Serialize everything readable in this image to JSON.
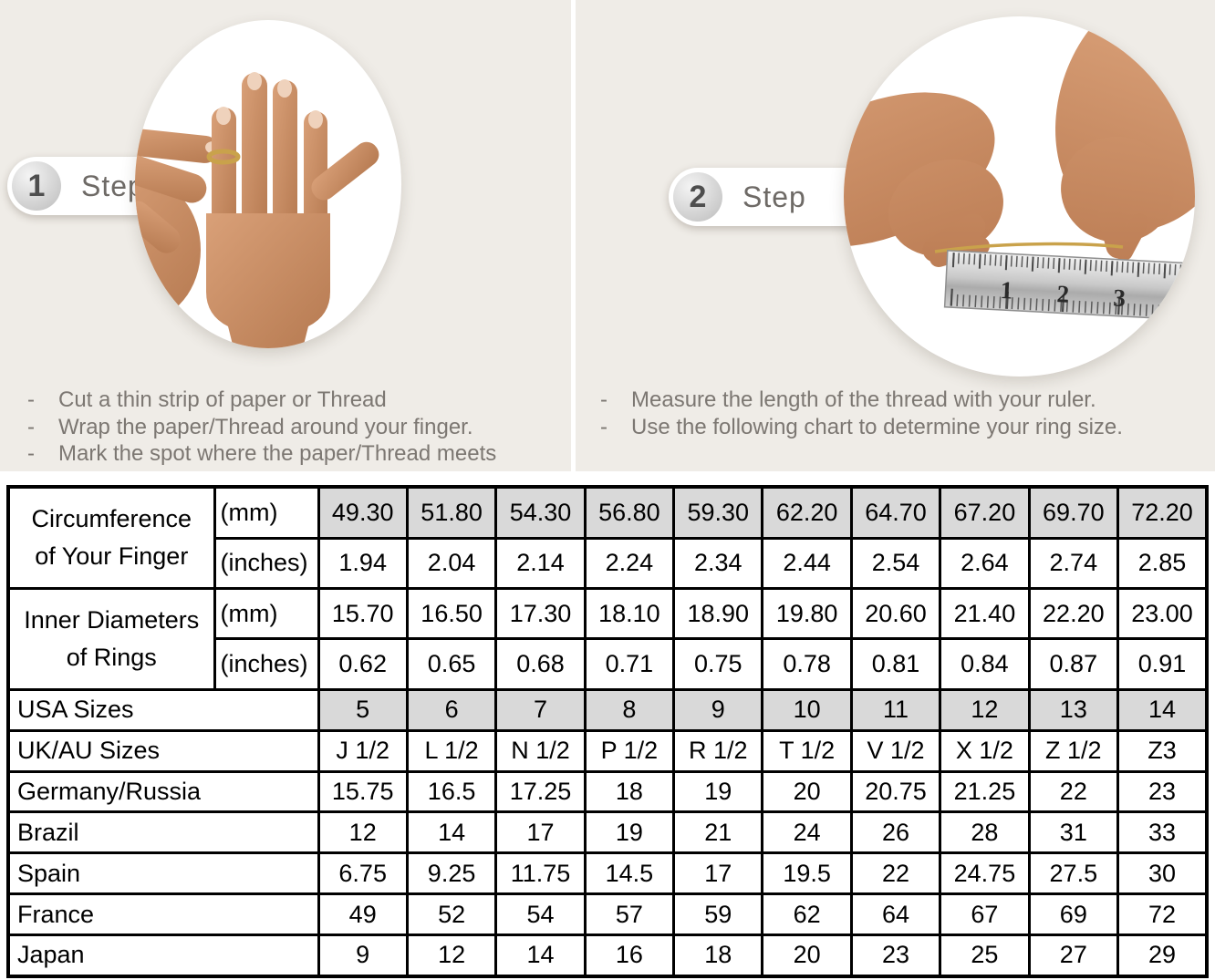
{
  "colors": {
    "panel_bg": "#EFECE7",
    "shaded_cell": "#D9D9D9",
    "table_border": "#000000",
    "thread_gold": "#C9A24B",
    "instruction_text": "#7C7772"
  },
  "step1": {
    "number": "1",
    "label": "Step",
    "bullets": [
      "Cut a thin strip of paper or Thread",
      "Wrap the paper/Thread around your finger.",
      "Mark the spot where the paper/Thread meets"
    ]
  },
  "step2": {
    "number": "2",
    "label": "Step",
    "bullets": [
      "Measure the length of the thread with your ruler.",
      "Use the following chart to determine your ring size."
    ],
    "ruler_numbers": [
      "1",
      "2",
      "3"
    ]
  },
  "table": {
    "groups": [
      {
        "label_lines": [
          "Circumference",
          "of Your Finger"
        ],
        "rows": [
          {
            "unit": "(mm)",
            "shaded": true,
            "values": [
              "49.30",
              "51.80",
              "54.30",
              "56.80",
              "59.30",
              "62.20",
              "64.70",
              "67.20",
              "69.70",
              "72.20"
            ]
          },
          {
            "unit": "(inches)",
            "shaded": false,
            "values": [
              "1.94",
              "2.04",
              "2.14",
              "2.24",
              "2.34",
              "2.44",
              "2.54",
              "2.64",
              "2.74",
              "2.85"
            ]
          }
        ]
      },
      {
        "label_lines": [
          "Inner Diameters",
          "of Rings"
        ],
        "rows": [
          {
            "unit": "(mm)",
            "shaded": false,
            "values": [
              "15.70",
              "16.50",
              "17.30",
              "18.10",
              "18.90",
              "19.80",
              "20.60",
              "21.40",
              "22.20",
              "23.00"
            ]
          },
          {
            "unit": "(inches)",
            "shaded": false,
            "values": [
              "0.62",
              "0.65",
              "0.68",
              "0.71",
              "0.75",
              "0.78",
              "0.81",
              "0.84",
              "0.87",
              "0.91"
            ]
          }
        ]
      }
    ],
    "size_rows": [
      {
        "label": "USA Sizes",
        "shaded": true,
        "values": [
          "5",
          "6",
          "7",
          "8",
          "9",
          "10",
          "11",
          "12",
          "13",
          "14"
        ]
      },
      {
        "label": "UK/AU Sizes",
        "shaded": false,
        "values": [
          "J 1/2",
          "L 1/2",
          "N 1/2",
          "P 1/2",
          "R 1/2",
          "T 1/2",
          "V 1/2",
          "X 1/2",
          "Z 1/2",
          "Z3"
        ]
      },
      {
        "label": "Germany/Russia",
        "shaded": false,
        "values": [
          "15.75",
          "16.5",
          "17.25",
          "18",
          "19",
          "20",
          "20.75",
          "21.25",
          "22",
          "23"
        ]
      },
      {
        "label": "Brazil",
        "shaded": false,
        "values": [
          "12",
          "14",
          "17",
          "19",
          "21",
          "24",
          "26",
          "28",
          "31",
          "33"
        ]
      },
      {
        "label": "Spain",
        "shaded": false,
        "values": [
          "6.75",
          "9.25",
          "11.75",
          "14.5",
          "17",
          "19.5",
          "22",
          "24.75",
          "27.5",
          "30"
        ]
      },
      {
        "label": "France",
        "shaded": false,
        "values": [
          "49",
          "52",
          "54",
          "57",
          "59",
          "62",
          "64",
          "67",
          "69",
          "72"
        ]
      },
      {
        "label": "Japan",
        "shaded": false,
        "values": [
          "9",
          "12",
          "14",
          "16",
          "18",
          "20",
          "23",
          "25",
          "27",
          "29"
        ]
      }
    ]
  }
}
